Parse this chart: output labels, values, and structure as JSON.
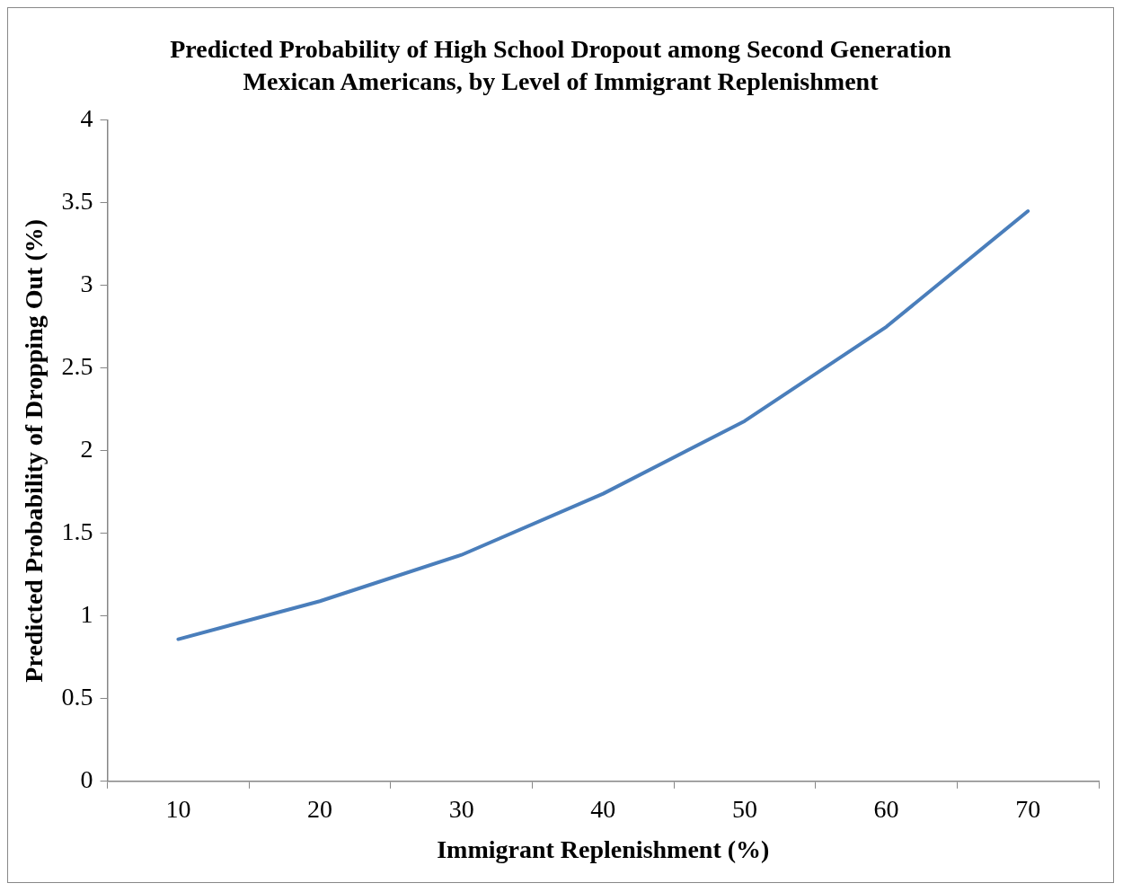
{
  "chart_data": {
    "type": "line",
    "title": "Predicted Probability of High School Dropout among Second Generation Mexican Americans, by Level of Immigrant Replenishment",
    "xlabel": "Immigrant Replenishment (%)",
    "ylabel": "Predicted Probability of Dropping Out (%)",
    "categories": [
      "10",
      "20",
      "30",
      "40",
      "50",
      "60",
      "70"
    ],
    "series": [
      {
        "color": "#4a7ebb",
        "values": [
          0.86,
          1.09,
          1.37,
          1.74,
          2.18,
          2.75,
          3.45
        ]
      }
    ],
    "ylim": [
      0,
      4
    ],
    "yticks": [
      0,
      0.5,
      1,
      1.5,
      2,
      2.5,
      3,
      3.5,
      4
    ],
    "grid": false,
    "legend": false,
    "marker": "none",
    "line_style": "solid"
  }
}
